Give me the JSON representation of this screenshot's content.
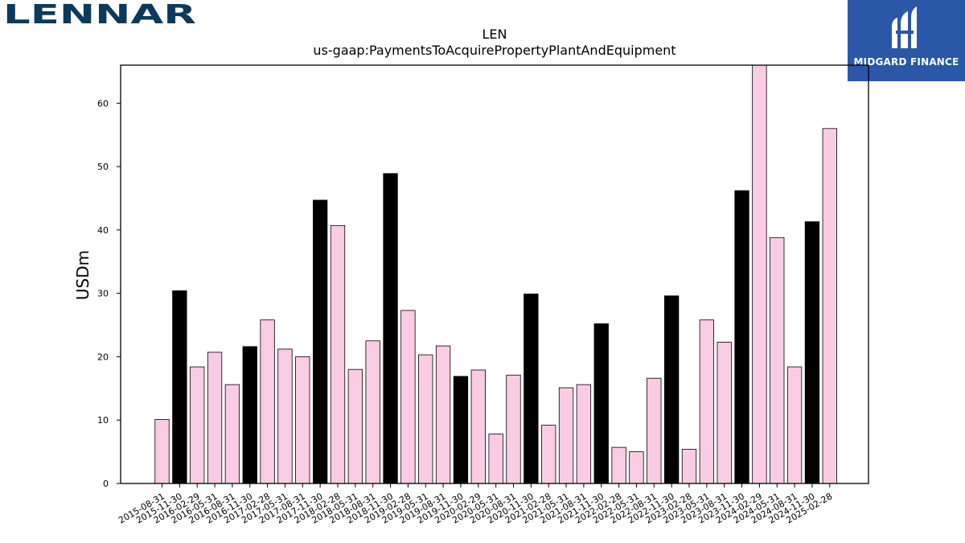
{
  "branding": {
    "left_logo_text": "LENNAR",
    "right_logo_text": "MIDGARD FINANCE",
    "left_logo_color": "#0b3a5c",
    "right_logo_bg": "#2b57a8"
  },
  "chart_data": {
    "type": "bar",
    "title": "LEN",
    "subtitle": "us-gaap:PaymentsToAcquirePropertyPlantAndEquipment",
    "xlabel": "",
    "ylabel": "USDm",
    "ylim": [
      0,
      66
    ],
    "yticks": [
      0,
      10,
      20,
      30,
      40,
      50,
      60
    ],
    "grid": false,
    "colors": {
      "quarter": "#f9cce3",
      "fiscal_year_end": "#000000",
      "edge": "#000000"
    },
    "categories": [
      "2015-08-31",
      "2015-11-30",
      "2016-02-29",
      "2016-05-31",
      "2016-08-31",
      "2016-11-30",
      "2017-02-28",
      "2017-05-31",
      "2017-08-31",
      "2017-11-30",
      "2018-02-28",
      "2018-05-31",
      "2018-08-31",
      "2018-11-30",
      "2019-02-28",
      "2019-05-31",
      "2019-08-31",
      "2019-11-30",
      "2020-02-29",
      "2020-05-31",
      "2020-08-31",
      "2020-11-30",
      "2021-02-28",
      "2021-05-31",
      "2021-08-31",
      "2021-11-30",
      "2022-02-28",
      "2022-05-31",
      "2022-08-31",
      "2022-11-30",
      "2023-02-28",
      "2023-05-31",
      "2023-08-31",
      "2023-11-30",
      "2024-02-29",
      "2024-05-31",
      "2024-08-31",
      "2024-11-30",
      "2025-02-28"
    ],
    "values": [
      10.1,
      30.4,
      18.4,
      20.7,
      15.6,
      21.6,
      25.8,
      21.2,
      20.0,
      44.7,
      40.7,
      18.0,
      22.5,
      48.9,
      27.3,
      20.3,
      21.7,
      16.9,
      17.9,
      7.8,
      17.1,
      29.9,
      9.2,
      15.1,
      15.6,
      25.2,
      5.7,
      5.0,
      16.6,
      29.6,
      5.4,
      25.8,
      22.3,
      46.2,
      66.0,
      38.8,
      18.4,
      41.3,
      56.0
    ],
    "highlight": [
      false,
      true,
      false,
      false,
      false,
      true,
      false,
      false,
      false,
      true,
      false,
      false,
      false,
      true,
      false,
      false,
      false,
      true,
      false,
      false,
      false,
      true,
      false,
      false,
      false,
      true,
      false,
      false,
      false,
      true,
      false,
      false,
      false,
      true,
      false,
      false,
      false,
      true,
      false
    ]
  }
}
